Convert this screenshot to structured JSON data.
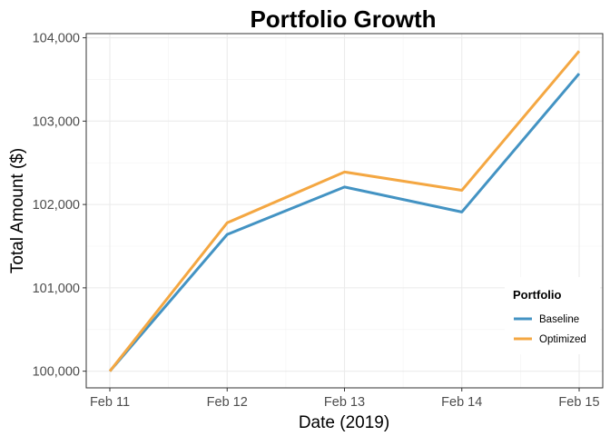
{
  "chart_data": {
    "type": "line",
    "title": "Portfolio Growth",
    "xlabel": "Date (2019)",
    "ylabel": "Total Amount ($)",
    "categories": [
      "Feb 11",
      "Feb 12",
      "Feb 13",
      "Feb 14",
      "Feb 15"
    ],
    "series": [
      {
        "name": "Baseline",
        "color": "#4393c3",
        "values": [
          100000,
          101640,
          102210,
          101910,
          103570
        ]
      },
      {
        "name": "Optimized",
        "color": "#f4a742",
        "values": [
          100000,
          101780,
          102390,
          102170,
          103840
        ]
      }
    ],
    "ylim": [
      99800,
      104050
    ],
    "yticks": [
      100000,
      101000,
      102000,
      103000,
      104000
    ],
    "ytick_labels": [
      "100,000",
      "101,000",
      "102,000",
      "103,000",
      "104,000"
    ],
    "grid": true,
    "legend": {
      "title": "Portfolio",
      "placement": "bottom-right"
    }
  }
}
